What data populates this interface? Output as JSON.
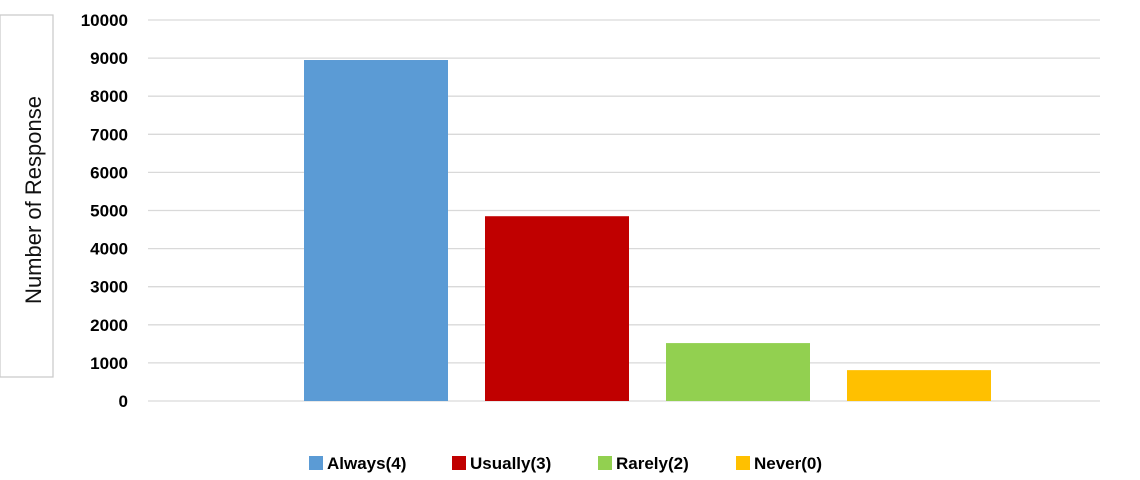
{
  "chart_data": {
    "type": "bar",
    "title": "",
    "xlabel": "",
    "ylabel": "Number of Response",
    "ylim": [
      0,
      10000
    ],
    "yticks": [
      0,
      1000,
      2000,
      3000,
      4000,
      5000,
      6000,
      7000,
      8000,
      9000,
      10000
    ],
    "grid": true,
    "legend_position": "bottom",
    "series": [
      {
        "name": "Always(4)",
        "value": 8950,
        "color": "#5B9BD5"
      },
      {
        "name": "Usually(3)",
        "value": 4850,
        "color": "#C00000"
      },
      {
        "name": "Rarely(2)",
        "value": 1520,
        "color": "#92D050"
      },
      {
        "name": "Never(0)",
        "value": 810,
        "color": "#FFC000"
      }
    ]
  }
}
